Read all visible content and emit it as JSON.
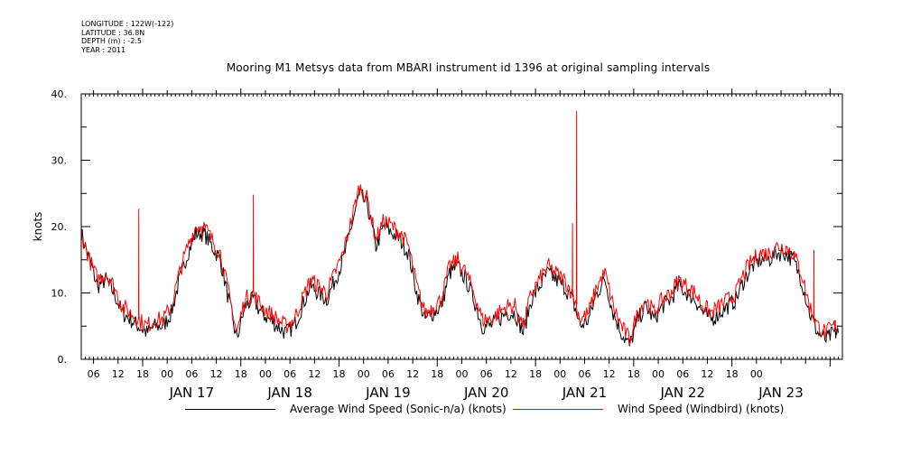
{
  "metadata": {
    "longitude": "LONGITUDE : 122W(-122)",
    "latitude": "LATITUDE : 36.8N",
    "depth": "DEPTH (m) : -2.5",
    "year": "YEAR : 2011"
  },
  "chart_data": {
    "type": "line",
    "title": "Mooring M1 Metsys data from MBARI instrument id 1396 at original sampling intervals",
    "ylabel": "knots",
    "xlabel": "",
    "ylim": [
      0,
      40
    ],
    "yticks": [
      "0.",
      "10.",
      "20.",
      "30.",
      "40."
    ],
    "x_hour_range": [
      -15,
      171
    ],
    "xticks_hours": [
      "06",
      "12",
      "18",
      "00",
      "06",
      "12",
      "18",
      "00",
      "06",
      "12",
      "18",
      "00",
      "06",
      "12",
      "18",
      "00",
      "06",
      "12",
      "18",
      "00",
      "06",
      "12",
      "18",
      "00",
      "06",
      "12",
      "18",
      "00"
    ],
    "day_labels": [
      "JAN 17",
      "JAN 18",
      "JAN 19",
      "JAN 20",
      "JAN 21",
      "JAN 22",
      "JAN 23"
    ],
    "grid": false,
    "legend_position": "bottom",
    "series": [
      {
        "name": "Average Wind Speed (Sonic-n/a) (knots)",
        "color": "#000000",
        "x": [
          -15,
          -13,
          -11,
          -9,
          -7,
          -5,
          -3,
          -1,
          1,
          3,
          5,
          7,
          9,
          11,
          13,
          15,
          17,
          19,
          21,
          23,
          25,
          27,
          29,
          31,
          33,
          35,
          37,
          39,
          41,
          43,
          45,
          47,
          49,
          51,
          53,
          55,
          57,
          59,
          61,
          63,
          65,
          67,
          69,
          71,
          73,
          75,
          77,
          79,
          81,
          83,
          85,
          87,
          89,
          91,
          93,
          95,
          97,
          99,
          101,
          103,
          105,
          107,
          109,
          111,
          113,
          115,
          117,
          119,
          121,
          123,
          125,
          127,
          129,
          131,
          133,
          135,
          137,
          139,
          141,
          143,
          145,
          147,
          149,
          151,
          153,
          155,
          157,
          159,
          161,
          163,
          165,
          167,
          169,
          170
        ],
        "y": [
          19,
          15,
          11,
          12,
          10,
          7,
          6,
          5,
          4,
          5,
          5,
          7,
          12,
          16,
          19,
          19,
          17,
          15,
          9,
          3,
          8,
          9,
          7,
          6,
          5,
          4,
          5,
          8,
          11,
          10,
          9,
          12,
          15,
          20,
          25,
          23,
          17,
          20,
          19,
          18,
          16,
          10,
          6,
          7,
          8,
          13,
          14,
          12,
          9,
          5,
          5,
          6,
          7,
          7,
          4,
          9,
          11,
          13,
          12,
          11,
          9,
          5,
          6,
          10,
          12,
          7,
          4,
          2,
          6,
          8,
          6,
          8,
          9,
          11,
          10,
          9,
          7,
          6,
          7,
          8,
          9,
          12,
          14,
          15,
          15,
          16,
          16,
          15,
          12,
          7,
          4,
          3,
          4,
          4
        ]
      },
      {
        "name": "Wind Speed (Windbird) (knots)",
        "color": "#ff0000",
        "x": [
          -15,
          -13,
          -11,
          -9,
          -7,
          -5,
          -3,
          -1,
          1,
          3,
          5,
          7,
          9,
          11,
          13,
          15,
          17,
          19,
          21,
          23,
          25,
          27,
          29,
          31,
          33,
          35,
          37,
          39,
          41,
          43,
          45,
          47,
          49,
          51,
          53,
          55,
          57,
          59,
          61,
          63,
          65,
          67,
          69,
          71,
          73,
          75,
          77,
          79,
          81,
          83,
          85,
          87,
          89,
          91,
          93,
          95,
          97,
          99,
          101,
          103,
          105,
          107,
          109,
          111,
          113,
          115,
          117,
          119,
          121,
          123,
          125,
          127,
          129,
          131,
          133,
          135,
          137,
          139,
          141,
          143,
          145,
          147,
          149,
          151,
          153,
          155,
          157,
          159,
          161,
          163,
          165,
          167,
          169,
          170
        ],
        "y": [
          19,
          15,
          12,
          13,
          11,
          8,
          7,
          6,
          5,
          6,
          6,
          8,
          13,
          17,
          20,
          20,
          18,
          16,
          10,
          4,
          9,
          10,
          8,
          7,
          6,
          5,
          6,
          9,
          12,
          11,
          10,
          13,
          16,
          21,
          26,
          24,
          18,
          21,
          20,
          19,
          17,
          11,
          7,
          8,
          9,
          14,
          15,
          13,
          10,
          6,
          6,
          7,
          8,
          8,
          5,
          10,
          12,
          14,
          13,
          12,
          10,
          6,
          7,
          11,
          13,
          8,
          5,
          3,
          7,
          9,
          7,
          9,
          10,
          12,
          11,
          10,
          8,
          7,
          8,
          9,
          10,
          13,
          15,
          16,
          16,
          17,
          17,
          16,
          13,
          8,
          5,
          4,
          5,
          5
        ],
        "spikes": [
          [
            -1,
            22.7
          ],
          [
            27,
            24.8
          ],
          [
            105,
            20.5
          ],
          [
            106,
            37.4
          ],
          [
            164,
            16.5
          ]
        ]
      }
    ]
  }
}
